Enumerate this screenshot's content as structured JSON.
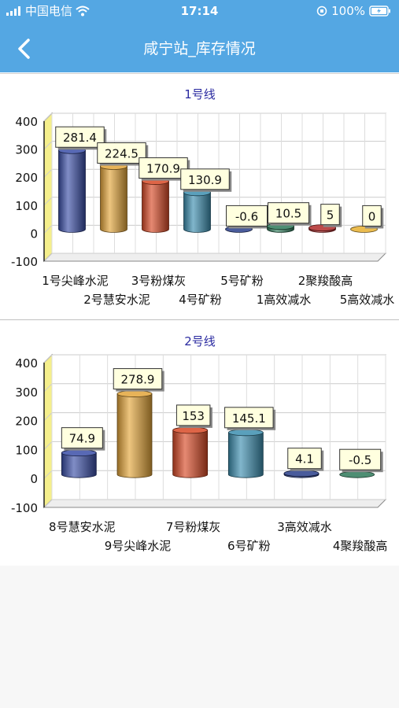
{
  "status_bar": {
    "carrier": "中国电信",
    "time": "17:14",
    "battery": "100%"
  },
  "nav": {
    "title": "咸宁站_库存情况",
    "back_icon": "chevron-left-icon"
  },
  "colors": {
    "header": "#54a7e3",
    "title_text": "#2a2aa0"
  },
  "chart_data": [
    {
      "type": "bar",
      "title": "1号线",
      "categories": [
        "1号尖峰水泥",
        "2号慧安水泥",
        "3号粉煤灰",
        "4号矿粉",
        "5号矿粉",
        "1高效减水",
        "2聚羧酸高",
        "5高效减水"
      ],
      "values": [
        281.4,
        224.5,
        170.9,
        130.9,
        -0.6,
        10.5,
        5,
        0
      ],
      "value_labels": [
        "281.4",
        "224.5",
        "170.9",
        "130.9",
        "-0.6",
        "10.5",
        "5",
        "0"
      ],
      "colors": [
        "#3b4fa8",
        "#e3a53a",
        "#d84a26",
        "#3d8fb0",
        "#2a3f8a",
        "#2f7a5a",
        "#b02a2a",
        "#e8b030"
      ],
      "yticks": [
        "400",
        "300",
        "200",
        "100",
        "0",
        "-100"
      ],
      "ylim": [
        -100,
        400
      ],
      "grid": true,
      "style": "3d-cylinder"
    },
    {
      "type": "bar",
      "title": "2号线",
      "categories": [
        "8号慧安水泥",
        "9号尖峰水泥",
        "7号粉煤灰",
        "6号矿粉",
        "3高效减水",
        "4聚羧酸高"
      ],
      "values": [
        74.9,
        278.9,
        153,
        145.1,
        4.1,
        -0.5
      ],
      "value_labels": [
        "74.9",
        "278.9",
        "153",
        "145.1",
        "4.1",
        "-0.5"
      ],
      "colors": [
        "#3b4fa8",
        "#e3a53a",
        "#d84a26",
        "#3d8fb0",
        "#2a3f8a",
        "#2f7a5a"
      ],
      "yticks": [
        "400",
        "300",
        "200",
        "100",
        "0",
        "-100"
      ],
      "ylim": [
        -100,
        400
      ],
      "grid": true,
      "style": "3d-cylinder"
    }
  ]
}
